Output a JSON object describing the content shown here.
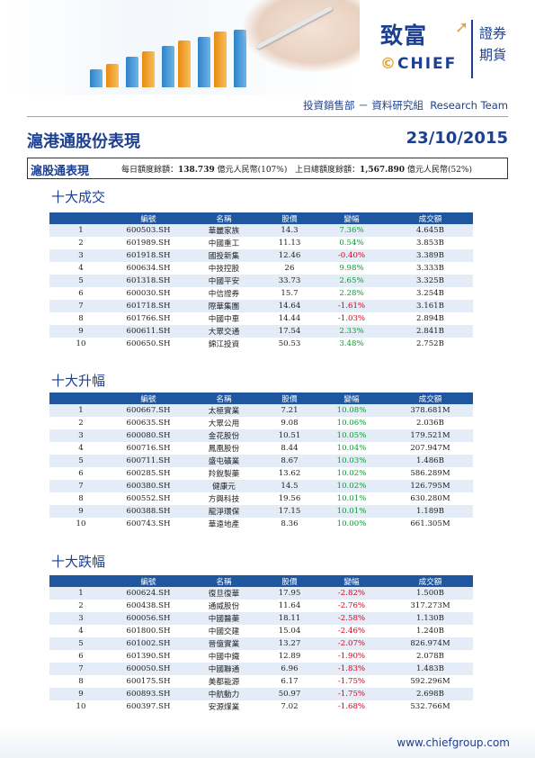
{
  "header": {
    "logo_cn": "致富",
    "logo_right_1": "證券",
    "logo_right_2": "期貨",
    "logo_en": "CHIEF",
    "dept_cn": "投資銷售部 － 資料研究組",
    "dept_en": "Research Team"
  },
  "report": {
    "title": "滬港通股份表現",
    "date": "23/10/2015"
  },
  "summary": {
    "label": "滬股通表現",
    "daily_label": "每日額度餘額：",
    "daily_value": "138.739",
    "daily_unit": " 億元人民幣(107%)",
    "prev_label": "上日總額度餘額：",
    "prev_value": "1,567.890",
    "prev_unit": " 億元人民幣(52%)"
  },
  "columns": [
    "",
    "編號",
    "名稱",
    "股價",
    "變幅",
    "成交額"
  ],
  "colors": {
    "accent": "#1d3f8f",
    "header": "#1f56a0",
    "up": "#0a9b2f",
    "down": "#d2001a"
  },
  "sections": [
    {
      "title": "十大成交",
      "rows": [
        [
          "1",
          "600503.SH",
          "華麗家族",
          "14.3",
          "7.36%",
          "4.645B"
        ],
        [
          "2",
          "601989.SH",
          "中國重工",
          "11.13",
          "0.54%",
          "3.853B"
        ],
        [
          "3",
          "601918.SH",
          "國投新集",
          "12.46",
          "-0.40%",
          "3.389B"
        ],
        [
          "4",
          "600634.SH",
          "中技控股",
          "26",
          "9.98%",
          "3.333B"
        ],
        [
          "5",
          "601318.SH",
          "中國平安",
          "33.73",
          "2.65%",
          "3.325B"
        ],
        [
          "6",
          "600030.SH",
          "中信證券",
          "15.7",
          "2.28%",
          "3.254B"
        ],
        [
          "7",
          "601718.SH",
          "際華集團",
          "14.64",
          "-1.61%",
          "3.161B"
        ],
        [
          "8",
          "601766.SH",
          "中國中車",
          "14.44",
          "-1.03%",
          "2.894B"
        ],
        [
          "9",
          "600611.SH",
          "大眾交通",
          "17.54",
          "2.33%",
          "2.841B"
        ],
        [
          "10",
          "600650.SH",
          "錦江投資",
          "50.53",
          "3.48%",
          "2.752B"
        ]
      ]
    },
    {
      "title": "十大升幅",
      "rows": [
        [
          "1",
          "600667.SH",
          "太極實業",
          "7.21",
          "10.08%",
          "378.681M"
        ],
        [
          "2",
          "600635.SH",
          "大眾公用",
          "9.08",
          "10.06%",
          "2.036B"
        ],
        [
          "3",
          "600080.SH",
          "金花股份",
          "10.51",
          "10.05%",
          "179.521M"
        ],
        [
          "4",
          "600716.SH",
          "鳳凰股份",
          "8.44",
          "10.04%",
          "207.947M"
        ],
        [
          "5",
          "600711.SH",
          "盛屯礦業",
          "8.67",
          "10.03%",
          "1.486B"
        ],
        [
          "6",
          "600285.SH",
          "羚銳製藥",
          "13.62",
          "10.02%",
          "586.289M"
        ],
        [
          "7",
          "600380.SH",
          "健康元",
          "14.5",
          "10.02%",
          "126.795M"
        ],
        [
          "8",
          "600552.SH",
          "方興科技",
          "19.56",
          "10.01%",
          "630.280M"
        ],
        [
          "9",
          "600388.SH",
          "龍淨環保",
          "17.15",
          "10.01%",
          "1.189B"
        ],
        [
          "10",
          "600743.SH",
          "華遠地產",
          "8.36",
          "10.00%",
          "661.305M"
        ]
      ]
    },
    {
      "title": "十大跌幅",
      "rows": [
        [
          "1",
          "600624.SH",
          "復旦復華",
          "17.95",
          "-2.82%",
          "1.500B"
        ],
        [
          "2",
          "600438.SH",
          "通威股份",
          "11.64",
          "-2.76%",
          "317.273M"
        ],
        [
          "3",
          "600056.SH",
          "中國醫藥",
          "18.11",
          "-2.58%",
          "1.130B"
        ],
        [
          "4",
          "601800.SH",
          "中國交建",
          "15.04",
          "-2.46%",
          "1.240B"
        ],
        [
          "5",
          "601002.SH",
          "晉億實業",
          "13.27",
          "-2.07%",
          "826.974M"
        ],
        [
          "6",
          "601390.SH",
          "中國中鐵",
          "12.89",
          "-1.90%",
          "2.078B"
        ],
        [
          "7",
          "600050.SH",
          "中國聯通",
          "6.96",
          "-1.83%",
          "1.483B"
        ],
        [
          "8",
          "600175.SH",
          "美都能源",
          "6.17",
          "-1.75%",
          "592.296M"
        ],
        [
          "9",
          "600893.SH",
          "中航動力",
          "50.97",
          "-1.75%",
          "2.698B"
        ],
        [
          "10",
          "600397.SH",
          "安源煤業",
          "7.02",
          "-1.68%",
          "532.766M"
        ]
      ]
    }
  ],
  "footer": {
    "url": "www.chiefgroup.com"
  }
}
